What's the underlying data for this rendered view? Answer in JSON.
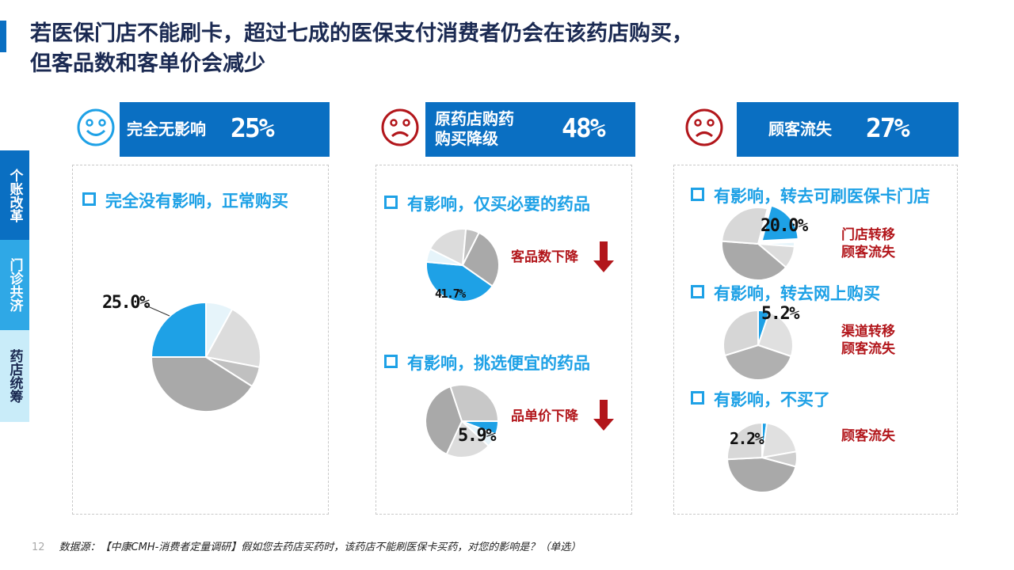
{
  "title": {
    "line1": "若医保门店不能刷卡，超过七成的医保支付消费者仍会在该药店购买，",
    "line2": "但客品数和客单价会减少"
  },
  "side_tabs": [
    "个账改革",
    "门诊共济",
    "药店统筹"
  ],
  "colors": {
    "accent": "#0a6fc2",
    "highlight": "#1ea1e6",
    "red": "#b2161b",
    "gray_light": "#dcdcdc",
    "gray_mid": "#c0c0c0",
    "gray_dark": "#a9a9a9",
    "pale": "#e6f4fa"
  },
  "groups": [
    {
      "face": "happy-face-icon",
      "label": "完全无影响",
      "pct": "25%"
    },
    {
      "face": "sad-face-icon",
      "label": "原药店购药\n购买降级",
      "pct": "48%"
    },
    {
      "face": "sad-face-icon",
      "label": "顾客流失",
      "pct": "27%"
    }
  ],
  "bullets": {
    "b1": "完全没有影响，正常购买",
    "b2": "有影响，仅买必要的药品",
    "b3": "有影响，挑选便宜的药品",
    "b4": "有影响，转去可刷医保卡门店",
    "b5": "有影响，转去网上购买",
    "b6": "有影响，不买了"
  },
  "red_labels": {
    "r1": "客品数下降",
    "r2": "品单价下降",
    "r3": "门店转移\n顾客流失",
    "r4": "渠道转移\n顾客流失",
    "r5": "顾客流失"
  },
  "chart_data": [
    {
      "type": "pie",
      "highlight": "完全没有影响，正常购买",
      "slices": [
        25.0,
        8,
        20,
        6,
        41
      ],
      "label": "25.0%"
    },
    {
      "type": "pie",
      "highlight": "有影响，仅买必要的药品",
      "slices": [
        41.7,
        6,
        19,
        6,
        27.3
      ],
      "label": "41.7%"
    },
    {
      "type": "pie",
      "highlight": "有影响，挑选便宜的药品",
      "slices": [
        5.9,
        6,
        20,
        38,
        30.1
      ],
      "label": "5.9%"
    },
    {
      "type": "pie",
      "highlight": "有影响，转去可刷医保卡门店",
      "slices": [
        20.0,
        2,
        10,
        40,
        28
      ],
      "label": "20.0%"
    },
    {
      "type": "pie",
      "highlight": "有影响，转去网上购买",
      "slices": [
        5.2,
        25,
        40,
        29.8
      ],
      "label": "5.2%"
    },
    {
      "type": "pie",
      "highlight": "有影响，不买了",
      "slices": [
        2.2,
        20,
        7,
        45,
        25.8
      ],
      "label": "2.2%"
    }
  ],
  "footer": {
    "page": "12",
    "text": "数据源：【中康CMH-消费者定量调研】假如您去药店买药时，该药店不能刷医保卡买药，对您的影响是？（单选）"
  }
}
